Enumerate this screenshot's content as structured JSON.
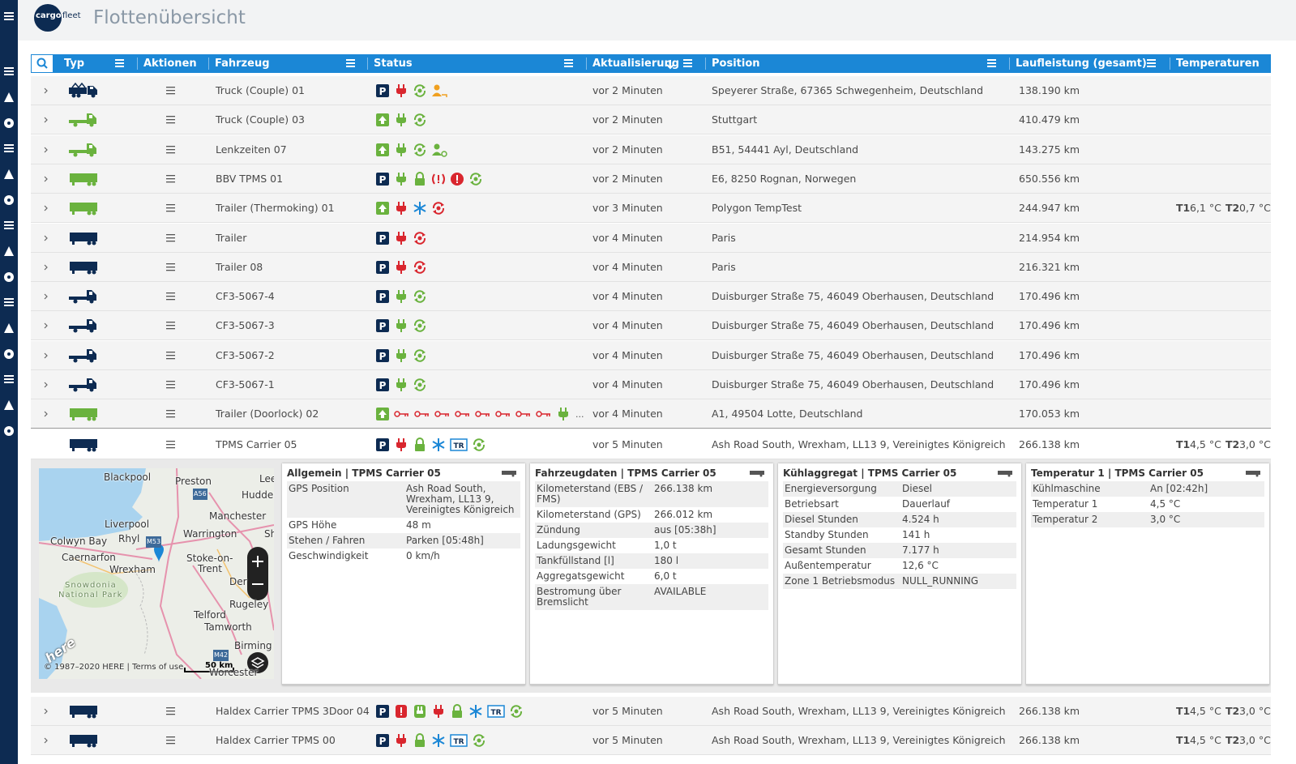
{
  "header": {
    "logo_primary": "cargo",
    "logo_secondary": "fleet",
    "title": "Flottenübersicht"
  },
  "table": {
    "columns": [
      "Typ",
      "Aktionen",
      "Fahrzeug",
      "Status",
      "Aktualisierung",
      "Position",
      "Laufleistung (gesamt)",
      "Temperaturen"
    ],
    "rows": [
      {
        "vehicle": "Truck (Couple) 01",
        "updated": "vor 2 Minuten",
        "position": "Speyerer Straße, 67365 Schwegenheim, Deutschland",
        "mileage": "138.190 km"
      },
      {
        "vehicle": "Truck (Couple) 03",
        "updated": "vor 2 Minuten",
        "position": "Stuttgart",
        "mileage": "410.479 km"
      },
      {
        "vehicle": "Lenkzeiten 07",
        "updated": "vor 2 Minuten",
        "position": "B51, 54441 Ayl, Deutschland",
        "mileage": "143.275 km"
      },
      {
        "vehicle": "BBV TPMS 01",
        "updated": "vor 2 Minuten",
        "position": "E6, 8250 Rognan, Norwegen",
        "mileage": "650.556 km"
      },
      {
        "vehicle": "Trailer (Thermoking) 01",
        "updated": "vor 3 Minuten",
        "position": "Polygon TempTest",
        "mileage": "244.947 km",
        "temperatures": [
          {
            "label": "T1",
            "value": "6,1 °C"
          },
          {
            "label": "T2",
            "value": "0,7 °C"
          }
        ]
      },
      {
        "vehicle": "Trailer",
        "updated": "vor 4 Minuten",
        "position": "Paris",
        "mileage": "214.954 km"
      },
      {
        "vehicle": "Trailer 08",
        "updated": "vor 4 Minuten",
        "position": "Paris",
        "mileage": "216.321 km"
      },
      {
        "vehicle": "CF3-5067-4",
        "updated": "vor 4 Minuten",
        "position": "Duisburger Straße 75, 46049 Oberhausen, Deutschland",
        "mileage": "170.496 km"
      },
      {
        "vehicle": "CF3-5067-3",
        "updated": "vor 4 Minuten",
        "position": "Duisburger Straße 75, 46049 Oberhausen, Deutschland",
        "mileage": "170.496 km"
      },
      {
        "vehicle": "CF3-5067-2",
        "updated": "vor 4 Minuten",
        "position": "Duisburger Straße 75, 46049 Oberhausen, Deutschland",
        "mileage": "170.496 km"
      },
      {
        "vehicle": "CF3-5067-1",
        "updated": "vor 4 Minuten",
        "position": "Duisburger Straße 75, 46049 Oberhausen, Deutschland",
        "mileage": "170.496 km"
      },
      {
        "vehicle": "Trailer (Doorlock) 02",
        "updated": "vor 4 Minuten",
        "position": "A1, 49504 Lotte, Deutschland",
        "mileage": "170.053 km"
      },
      {
        "vehicle": "TPMS Carrier 05",
        "updated": "vor 5 Minuten",
        "position": "Ash Road South, Wrexham, LL13 9, Vereinigtes Königreich",
        "mileage": "266.138 km",
        "temperatures": [
          {
            "label": "T1",
            "value": "4,5 °C"
          },
          {
            "label": "T2",
            "value": "3,0 °C"
          }
        ]
      },
      {
        "vehicle": "Haldex Carrier TPMS 3Door 04",
        "updated": "vor 5 Minuten",
        "position": "Ash Road South, Wrexham, LL13 9, Vereinigtes Königreich",
        "mileage": "266.138 km",
        "temperatures": [
          {
            "label": "T1",
            "value": "4,5 °C"
          },
          {
            "label": "T2",
            "value": "3,0 °C"
          }
        ]
      },
      {
        "vehicle": "Haldex Carrier TPMS 00",
        "updated": "vor 5 Minuten",
        "position": "Ash Road South, Wrexham, LL13 9, Vereinigtes Königreich",
        "mileage": "266.138 km",
        "temperatures": [
          {
            "label": "T1",
            "value": "4,5 °C"
          },
          {
            "label": "T2",
            "value": "3,0 °C"
          }
        ]
      }
    ]
  },
  "badges": {
    "parking": "P",
    "reefer": "TR",
    "more": "..."
  },
  "map": {
    "labels": [
      "Blackpool",
      "Preston",
      "Lee",
      "Hudder",
      "Manchester",
      "Liverpool",
      "Warrington",
      "Sh",
      "Colwyn Bay",
      "Rhyl",
      "Caernarfon",
      "Stoke-on-",
      "Trent",
      "Wrexham",
      "Der",
      "Snowdonia",
      "National Park",
      "Rugeley",
      "Telford",
      "Tamworth",
      "Birming",
      "Worcester",
      "A56",
      "M53",
      "M42"
    ],
    "brand": "here",
    "copyright": "© 1987–2020 HERE | Terms of use",
    "scale": "50 km"
  },
  "panels": [
    {
      "title": "Allgemein | TPMS Carrier 05",
      "rows": [
        [
          "GPS Position",
          "Ash Road South, Wrexham, LL13 9, Vereinigtes Königreich"
        ],
        [
          "GPS Höhe",
          "48 m"
        ],
        [
          "Stehen / Fahren",
          "Parken [05:48h]"
        ],
        [
          "Geschwindigkeit",
          "0 km/h"
        ]
      ]
    },
    {
      "title": "Fahrzeugdaten | TPMS Carrier 05",
      "rows": [
        [
          "Kilometerstand (EBS / FMS)",
          "266.138 km"
        ],
        [
          "Kilometerstand (GPS)",
          "266.012 km"
        ],
        [
          "Zündung",
          "aus [05:38h]"
        ],
        [
          "Ladungsgewicht",
          "1,0 t"
        ],
        [
          "Tankfüllstand [l]",
          "180 l"
        ],
        [
          "Aggregatsgewicht",
          "6,0 t"
        ],
        [
          "Bestromung über Bremslicht",
          "AVAILABLE"
        ]
      ]
    },
    {
      "title": "Kühlaggregat | TPMS Carrier 05",
      "rows": [
        [
          "Energieversorgung",
          "Diesel"
        ],
        [
          "Betriebsart",
          "Dauerlauf"
        ],
        [
          "Diesel Stunden",
          "4.524 h"
        ],
        [
          "Standby Stunden",
          "141 h"
        ],
        [
          "Gesamt Stunden",
          "7.177 h"
        ],
        [
          "Außentemperatur",
          "12,6 °C"
        ],
        [
          "Zone 1 Betriebsmodus",
          "NULL_RUNNING"
        ]
      ]
    },
    {
      "title": "Temperatur 1 | TPMS Carrier 05",
      "rows": [
        [
          "Kühlmaschine",
          "An [02:42h]"
        ],
        [
          "Temperatur 1",
          "4,5 °C"
        ],
        [
          "Temperatur 2",
          "3,0 °C"
        ]
      ]
    }
  ]
}
